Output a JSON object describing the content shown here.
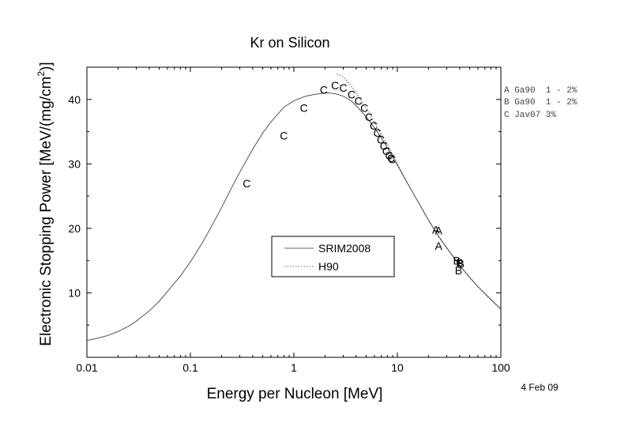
{
  "chart_data": {
    "type": "scatter",
    "title": "Kr on Silicon",
    "xlabel": "Energy per Nucleon [MeV]",
    "ylabel": "Electronic Stopping Power [MeV/(mg/cm",
    "ylabel_sup": "2",
    "ylabel_end": ")]",
    "xscale": "log",
    "xlim": [
      0.01,
      100
    ],
    "ylim": [
      0,
      45
    ],
    "xticks": [
      0.01,
      0.1,
      1,
      10,
      100
    ],
    "xtick_labels": [
      "0.01",
      "0.1",
      "1",
      "10",
      "100"
    ],
    "yticks": [
      10,
      20,
      30,
      40
    ],
    "ytick_labels": [
      "10",
      "20",
      "30",
      "40"
    ],
    "date_label": "4 Feb 09",
    "legend": {
      "placement": "center-left",
      "entries": [
        {
          "name": "SRIM2008",
          "style": "solid"
        },
        {
          "name": "H90",
          "style": "dotted"
        }
      ]
    },
    "reference_key": [
      {
        "marker": "A",
        "text": "A Ga90  1 - 2%"
      },
      {
        "marker": "B",
        "text": "B Ga90  1 - 2%"
      },
      {
        "marker": "C",
        "text": "C Jav07 3%"
      }
    ],
    "series": [
      {
        "name": "SRIM2008",
        "kind": "line",
        "style": "solid",
        "x": [
          0.01,
          0.013,
          0.016,
          0.02,
          0.025,
          0.03,
          0.04,
          0.05,
          0.06,
          0.08,
          0.1,
          0.13,
          0.16,
          0.2,
          0.25,
          0.3,
          0.4,
          0.5,
          0.6,
          0.8,
          1.0,
          1.3,
          1.6,
          2.0,
          2.2,
          2.5,
          3.0,
          3.5,
          4.0,
          5.0,
          6.0,
          7.0,
          8.0,
          10,
          12,
          15,
          20,
          25,
          30,
          40,
          50,
          60,
          80,
          100
        ],
        "y": [
          2.6,
          3.0,
          3.4,
          4.0,
          4.8,
          5.6,
          7.2,
          8.7,
          10.2,
          12.6,
          14.8,
          17.7,
          20.3,
          23.2,
          26.3,
          28.7,
          32.3,
          34.8,
          36.5,
          38.8,
          39.8,
          40.5,
          40.8,
          41.0,
          41.0,
          40.9,
          40.5,
          39.9,
          39.0,
          37.3,
          35.6,
          34.0,
          32.5,
          29.8,
          27.5,
          24.8,
          21.3,
          18.8,
          17.0,
          14.3,
          12.4,
          11.0,
          9.0,
          7.5
        ]
      },
      {
        "name": "H90",
        "kind": "line",
        "style": "dotted",
        "x": [
          2.6,
          3.0,
          3.5,
          4.0,
          5.0,
          6.0,
          7.0,
          8.0,
          10,
          12,
          15,
          20,
          25,
          30,
          40,
          50,
          60,
          80,
          100
        ],
        "y": [
          44.0,
          43.5,
          42.3,
          41.0,
          38.6,
          36.5,
          34.6,
          33.0,
          30.0,
          27.6,
          24.8,
          21.2,
          18.7,
          16.9,
          14.2,
          12.3,
          10.9,
          8.9,
          7.4
        ]
      },
      {
        "name": "A",
        "kind": "letters",
        "x": [
          23.5,
          25.0,
          25.0
        ],
        "y": [
          19.8,
          19.7,
          17.3
        ]
      },
      {
        "name": "B",
        "kind": "letters",
        "x": [
          37.5,
          40.0,
          41.0,
          39.0
        ],
        "y": [
          15.0,
          14.7,
          14.5,
          13.5
        ]
      },
      {
        "name": "C",
        "kind": "letters",
        "x": [
          0.35,
          0.8,
          1.25,
          1.95,
          2.5,
          3.0,
          3.6,
          4.2,
          4.8,
          5.3,
          5.9,
          6.4,
          6.9,
          7.4,
          7.8,
          8.3,
          8.7,
          8.9
        ],
        "y": [
          27.0,
          34.4,
          38.7,
          41.5,
          42.2,
          41.8,
          40.8,
          39.8,
          38.7,
          37.3,
          35.9,
          34.8,
          33.8,
          32.8,
          32.0,
          31.3,
          30.9,
          30.7
        ]
      }
    ]
  }
}
